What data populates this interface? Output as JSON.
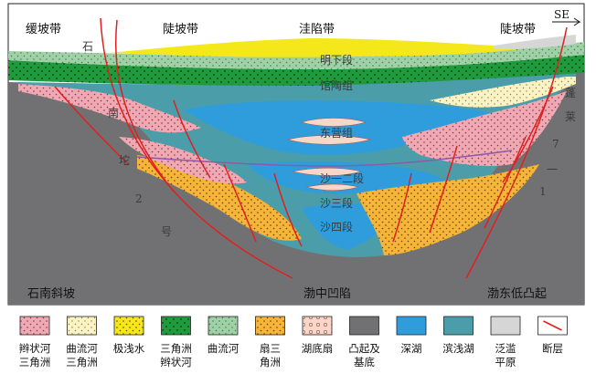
{
  "zones": {
    "gentle_slope": "缓坡带",
    "slope_west": "陡坡带",
    "depression": "洼陷带",
    "slope_east": "陡坡带",
    "direction": "SE"
  },
  "strata": {
    "minghuazhen_lower": "明下段",
    "guantao": "馆陶组",
    "dongying": "东营组",
    "sha_1_2": "沙一二段",
    "sha_3": "沙三段",
    "sha_4": "沙四段"
  },
  "faults": {
    "west_chars": [
      "石",
      "南",
      "坨",
      "2",
      "号"
    ],
    "east_chars": [
      "蓬",
      "莱",
      "7",
      "一",
      "1"
    ]
  },
  "base_labels": {
    "west": "石南斜坡",
    "center": "渤中凹陷",
    "east": "渤东低凸起"
  },
  "legend": [
    {
      "line1": "辫状河",
      "line2": "三角洲",
      "swatch": "pink",
      "color": "#f0a9b4"
    },
    {
      "line1": "曲流河",
      "line2": "三角洲",
      "swatch": "cream",
      "color": "#fbf3c6"
    },
    {
      "line1": "极浅水",
      "line2": "",
      "swatch": "yellow",
      "color": "#f4e81a"
    },
    {
      "line1": "三角洲",
      "line2": "辫状河",
      "swatch": "dark-green",
      "color": "#1f9a3c"
    },
    {
      "line1": "曲流河",
      "line2": "",
      "swatch": "light-green",
      "color": "#9fd1a6"
    },
    {
      "line1": "扇三",
      "line2": "角洲",
      "swatch": "orange",
      "color": "#f4b53a"
    },
    {
      "line1": "湖底扇",
      "line2": "",
      "swatch": "light-pink",
      "color": "#f9d7c8"
    },
    {
      "line1": "凸起及",
      "line2": "基底",
      "swatch": "gray",
      "color": "#717174"
    },
    {
      "line1": "深湖",
      "line2": "",
      "swatch": "blue",
      "color": "#2f9ddc"
    },
    {
      "line1": "滨浅湖",
      "line2": "",
      "swatch": "teal",
      "color": "#4b9ea9"
    },
    {
      "line1": "泛滥",
      "line2": "平原",
      "swatch": "light-gray",
      "color": "#d6d6d6"
    },
    {
      "line1": "断层",
      "line2": "",
      "swatch": "fault",
      "color": "#e0201e"
    }
  ]
}
